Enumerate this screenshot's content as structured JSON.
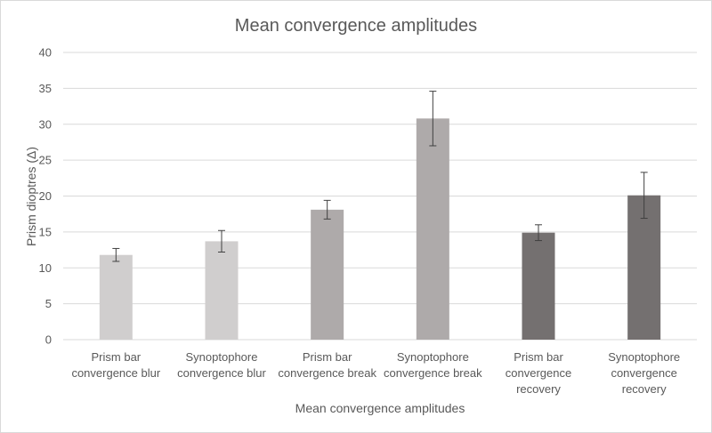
{
  "chart_data": {
    "type": "bar",
    "title": "Mean convergence amplitudes",
    "xlabel": "Mean convergence amplitudes",
    "ylabel": "Prism dioptres (Δ)",
    "ylim": [
      0,
      40
    ],
    "yticks": [
      0,
      5,
      10,
      15,
      20,
      25,
      30,
      35,
      40
    ],
    "grid": true,
    "legend": "none",
    "categories": [
      [
        "Prism bar",
        "convergence blur"
      ],
      [
        "Synoptophore",
        "convergence blur"
      ],
      [
        "Prism bar",
        "convergence break"
      ],
      [
        "Synoptophore",
        "convergence break"
      ],
      [
        "Prism bar",
        "convergence",
        "recovery"
      ],
      [
        "Synoptophore",
        "convergence",
        "recovery"
      ]
    ],
    "values": [
      11.8,
      13.7,
      18.1,
      30.8,
      14.9,
      20.1
    ],
    "error": [
      0.9,
      1.5,
      1.3,
      3.8,
      1.1,
      3.2
    ],
    "colors": [
      "#d0cece",
      "#d0cece",
      "#aeaaaa",
      "#aeaaaa",
      "#747070",
      "#747070"
    ]
  }
}
